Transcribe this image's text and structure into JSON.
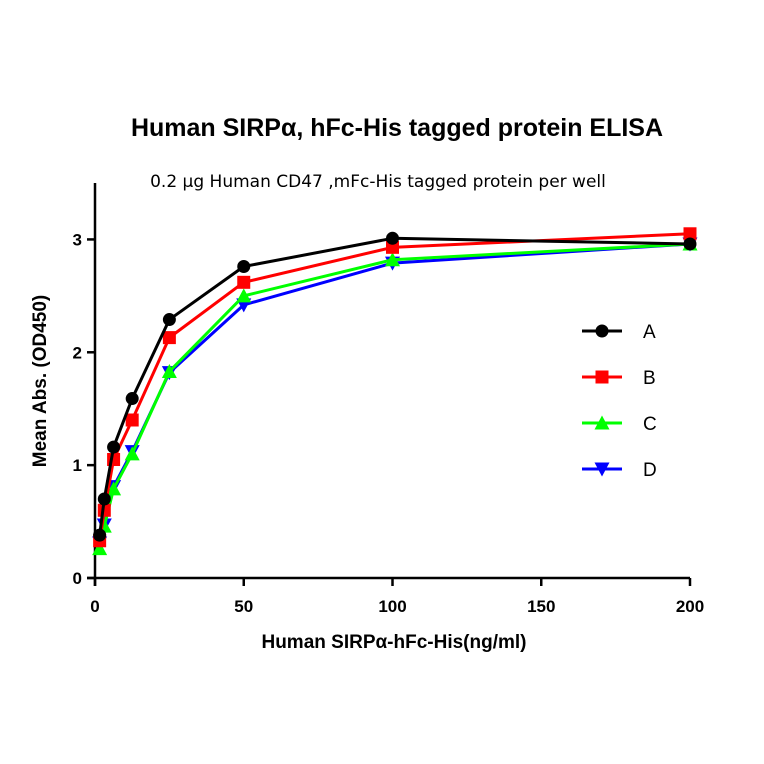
{
  "chart_data": {
    "type": "line",
    "title": "Human SIRPα, hFc-His tagged protein ELISA",
    "subtitle": "0.2 µg Human CD47 ,mFc-His tagged protein per well",
    "xlabel": "Human SIRPα-hFc-His(ng/ml)",
    "ylabel": "Mean Abs. (OD450)",
    "xlim": [
      0,
      200
    ],
    "ylim": [
      0,
      3.5
    ],
    "xticks": [
      0,
      50,
      100,
      150,
      200
    ],
    "yticks": [
      0,
      1,
      2,
      3
    ],
    "grid": false,
    "legend_position": "right",
    "x": [
      1.56,
      3.125,
      6.25,
      12.5,
      25,
      50,
      100,
      200
    ],
    "series": [
      {
        "name": "A",
        "color": "#000000",
        "marker": "circle",
        "values": [
          0.38,
          0.7,
          1.16,
          1.59,
          2.29,
          2.76,
          3.01,
          2.96
        ]
      },
      {
        "name": "B",
        "color": "#ff0000",
        "marker": "square",
        "values": [
          0.33,
          0.6,
          1.05,
          1.4,
          2.13,
          2.62,
          2.93,
          3.05
        ]
      },
      {
        "name": "C",
        "color": "#00ff00",
        "marker": "triangle-up",
        "values": [
          0.26,
          0.46,
          0.79,
          1.1,
          1.83,
          2.5,
          2.82,
          2.96
        ]
      },
      {
        "name": "D",
        "color": "#0000ff",
        "marker": "triangle-down",
        "values": [
          0.31,
          0.47,
          0.81,
          1.12,
          1.82,
          2.42,
          2.79,
          2.96
        ]
      }
    ]
  }
}
